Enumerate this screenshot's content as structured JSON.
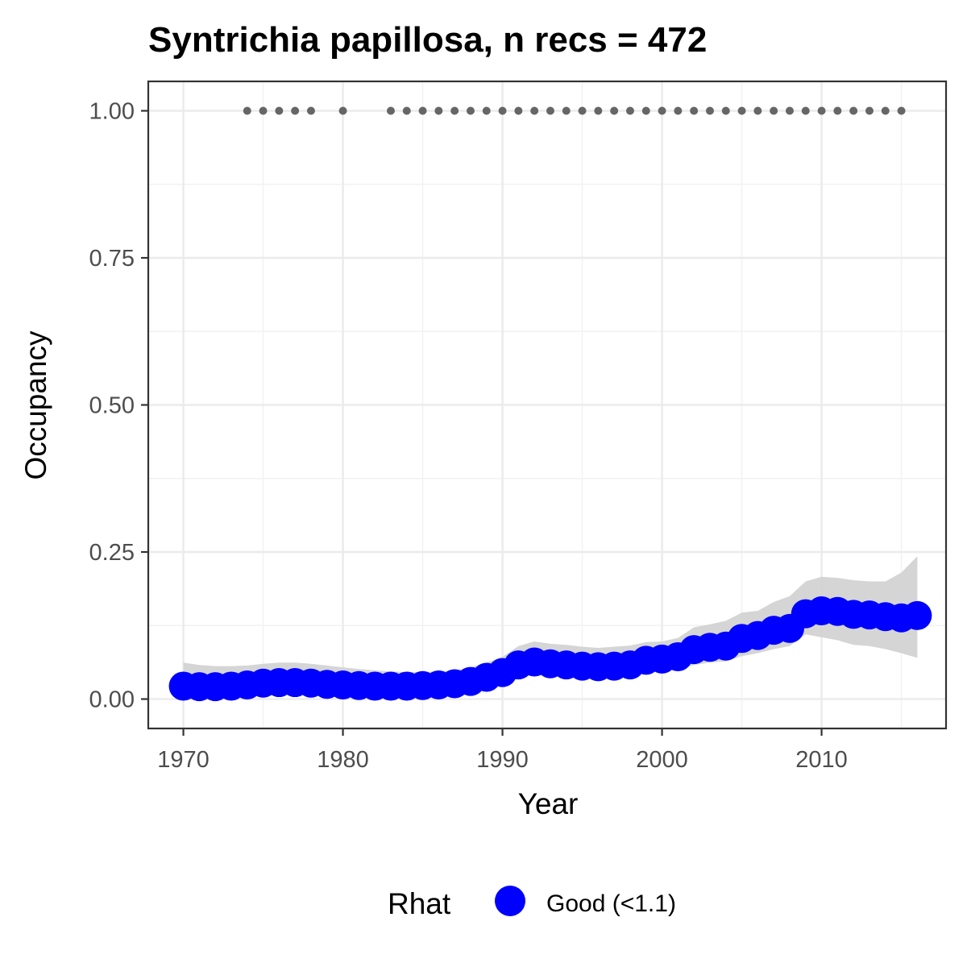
{
  "chart_data": {
    "type": "line",
    "title": "Syntrichia papillosa, n recs = 472",
    "xlabel": "Year",
    "ylabel": "Occupancy",
    "xlim": [
      1967.8,
      2017.8
    ],
    "ylim": [
      -0.05,
      1.05
    ],
    "x_ticks": [
      1970,
      1980,
      1990,
      2000,
      2010
    ],
    "x_tick_labels": [
      "1970",
      "1980",
      "1990",
      "2000",
      "2010"
    ],
    "y_ticks": [
      0,
      0.25,
      0.5,
      0.75,
      1
    ],
    "y_tick_labels": [
      "0.00",
      "0.25",
      "0.50",
      "0.75",
      "1.00"
    ],
    "grid": true,
    "series": [
      {
        "name": "Good (<1.1)",
        "x": [
          1970,
          1971,
          1972,
          1973,
          1974,
          1975,
          1976,
          1977,
          1978,
          1979,
          1980,
          1981,
          1982,
          1983,
          1984,
          1985,
          1986,
          1987,
          1988,
          1989,
          1990,
          1991,
          1992,
          1993,
          1994,
          1995,
          1996,
          1997,
          1998,
          1999,
          2000,
          2001,
          2002,
          2003,
          2004,
          2005,
          2006,
          2007,
          2008,
          2009,
          2010,
          2011,
          2012,
          2013,
          2014,
          2015,
          2016
        ],
        "y": [
          0.022,
          0.021,
          0.021,
          0.022,
          0.024,
          0.027,
          0.028,
          0.028,
          0.027,
          0.025,
          0.024,
          0.023,
          0.022,
          0.022,
          0.022,
          0.023,
          0.024,
          0.026,
          0.03,
          0.037,
          0.045,
          0.058,
          0.063,
          0.06,
          0.058,
          0.056,
          0.055,
          0.056,
          0.058,
          0.066,
          0.068,
          0.072,
          0.084,
          0.088,
          0.09,
          0.103,
          0.108,
          0.117,
          0.12,
          0.145,
          0.15,
          0.149,
          0.144,
          0.143,
          0.14,
          0.138,
          0.142
        ],
        "lower": [
          0.005,
          0.004,
          0.004,
          0.005,
          0.007,
          0.009,
          0.01,
          0.01,
          0.009,
          0.008,
          0.007,
          0.006,
          0.006,
          0.006,
          0.006,
          0.007,
          0.008,
          0.009,
          0.013,
          0.019,
          0.027,
          0.037,
          0.042,
          0.04,
          0.038,
          0.037,
          0.036,
          0.037,
          0.039,
          0.045,
          0.048,
          0.05,
          0.058,
          0.062,
          0.064,
          0.073,
          0.078,
          0.085,
          0.09,
          0.11,
          0.105,
          0.1,
          0.092,
          0.09,
          0.085,
          0.078,
          0.07
        ],
        "upper": [
          0.062,
          0.058,
          0.056,
          0.056,
          0.057,
          0.06,
          0.062,
          0.062,
          0.06,
          0.057,
          0.054,
          0.051,
          0.049,
          0.047,
          0.046,
          0.046,
          0.047,
          0.049,
          0.054,
          0.062,
          0.072,
          0.09,
          0.098,
          0.094,
          0.092,
          0.089,
          0.087,
          0.089,
          0.091,
          0.097,
          0.098,
          0.104,
          0.122,
          0.127,
          0.133,
          0.147,
          0.15,
          0.165,
          0.175,
          0.2,
          0.208,
          0.206,
          0.202,
          0.2,
          0.2,
          0.215,
          0.243
        ],
        "color": "#0000ff",
        "ribbon_color": "#d3d3d3"
      }
    ],
    "records": {
      "x": [
        1974,
        1975,
        1976,
        1977,
        1978,
        1980,
        1983,
        1984,
        1985,
        1986,
        1987,
        1988,
        1989,
        1990,
        1991,
        1992,
        1993,
        1994,
        1995,
        1996,
        1997,
        1998,
        1999,
        2000,
        2001,
        2002,
        2003,
        2004,
        2005,
        2006,
        2007,
        2008,
        2009,
        2010,
        2011,
        2012,
        2013,
        2014,
        2015
      ],
      "y": 1,
      "color": "#666666"
    },
    "legend": {
      "title": "Rhat",
      "entries": [
        {
          "label": "Good (<1.1)",
          "color": "#0000ff"
        }
      ],
      "position": "bottom"
    }
  }
}
